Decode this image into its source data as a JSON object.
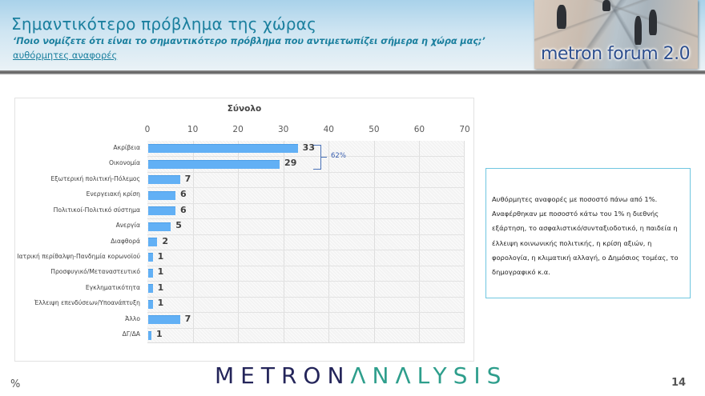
{
  "header": {
    "title": "Σημαντικότερο πρόβλημα της χώρας",
    "subtitle": "‘Ποιο νομίζετε ότι  είναι το σημαντικότερο πρόβλημα που αντιμετωπίζει σήμερα η χώρα μας;’",
    "note": "αυθόρμητες αναφορές",
    "logo_text": "metron forum 2.0"
  },
  "chart_data": {
    "type": "bar",
    "orientation": "horizontal",
    "title": "Σύνολο",
    "xlabel": "",
    "ylabel": "",
    "xlim": [
      0,
      70
    ],
    "x_ticks": [
      0,
      10,
      20,
      30,
      40,
      50,
      60,
      70
    ],
    "grid": true,
    "legend": "none",
    "categories": [
      "Ακρίβεια",
      "Οικονομία",
      "Εξωτερική πολιτική-Πόλεμος",
      "Ενεργειακή κρίση",
      "Πολιτικοί-Πολιτικό σύστημα",
      "Ανεργία",
      "Διαφθορά",
      "Ιατρική περίθαλψη-Πανδημία κορωνοϊού",
      "Προσφυγικό/Μεταναστευτικό",
      "Εγκληματικότητα",
      "Έλλειψη επενδύσεων/Υποανάπτυξη",
      "Άλλο",
      "ΔΓ/ΔΑ"
    ],
    "values": [
      33,
      29,
      7,
      6,
      6,
      5,
      2,
      1,
      1,
      1,
      1,
      7,
      1
    ],
    "series": [
      {
        "name": "Σύνολο",
        "values": [
          33,
          29,
          7,
          6,
          6,
          5,
          2,
          1,
          1,
          1,
          1,
          7,
          1
        ],
        "color": "#62b0f5"
      }
    ],
    "annotations": [
      {
        "type": "bracket",
        "spans": [
          "Ακρίβεια",
          "Οικονομία"
        ],
        "label": "62%",
        "color": "#3a5fb0"
      }
    ]
  },
  "notes": {
    "text": "Αυθόρμητες αναφορές με ποσοστό πάνω από 1%. Αναφέρθηκαν με ποσοστό κάτω του 1% η διεθνής εξάρτηση, το ασφαλιστικό/συνταξιοδοτικό, η παιδεία η έλλειψη κοινωνικής πολιτικής, η κρίση αξιών, η φορολογία, η κλιματική αλλαγή, ο Δημόσιος τομέας, το δημογραφικό κ.α."
  },
  "footer": {
    "unit": "%",
    "brand_part1": "METRON",
    "brand_part2": "ΛNΛLYSIS",
    "page_number": "14"
  },
  "colors": {
    "title": "#1a7f9e",
    "bar": "#62b0f5",
    "notes_border": "#6fc6e0",
    "brand_dark": "#24255a",
    "brand_teal": "#2e9e8c"
  }
}
